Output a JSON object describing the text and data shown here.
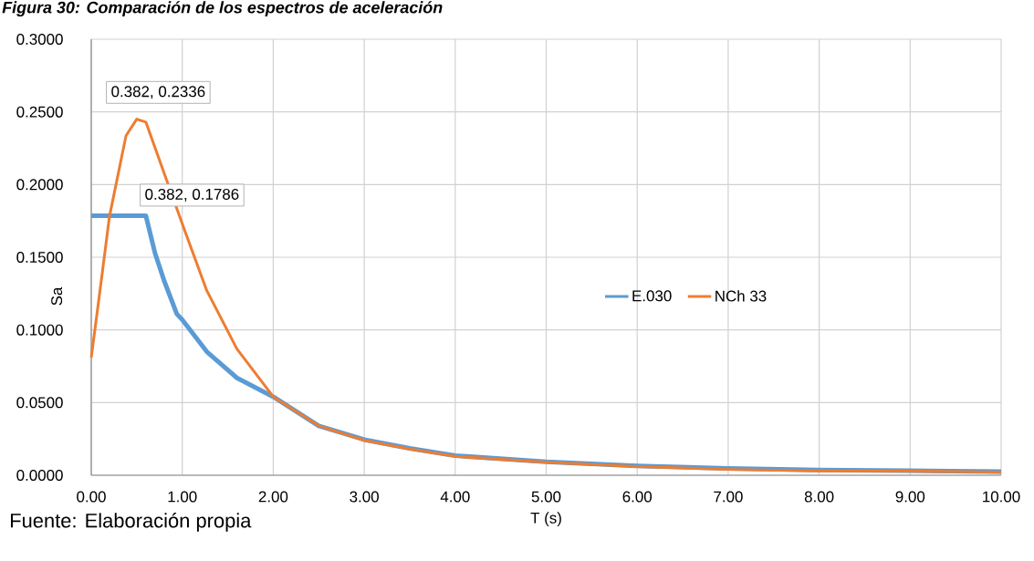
{
  "chart_data": {
    "type": "line",
    "title": "Figura 30: Comparación de los espectros de aceleración",
    "xlabel": "T (s)",
    "ylabel": "Sa",
    "xlim": [
      0,
      10
    ],
    "ylim": [
      0,
      0.3
    ],
    "xticks": [
      {
        "value": 0,
        "label": "0.00"
      },
      {
        "value": 1,
        "label": "1.00"
      },
      {
        "value": 2,
        "label": "2.00"
      },
      {
        "value": 3,
        "label": "3.00"
      },
      {
        "value": 4,
        "label": "4.00"
      },
      {
        "value": 5,
        "label": "5.00"
      },
      {
        "value": 6,
        "label": "6.00"
      },
      {
        "value": 7,
        "label": "7.00"
      },
      {
        "value": 8,
        "label": "8.00"
      },
      {
        "value": 9,
        "label": "9.00"
      },
      {
        "value": 10,
        "label": "10.00"
      }
    ],
    "yticks": [
      {
        "value": 0,
        "label": "0.0000"
      },
      {
        "value": 0.05,
        "label": "0.0500"
      },
      {
        "value": 0.1,
        "label": "0.1000"
      },
      {
        "value": 0.15,
        "label": "0.1500"
      },
      {
        "value": 0.2,
        "label": "0.2000"
      },
      {
        "value": 0.25,
        "label": "0.2500"
      },
      {
        "value": 0.3,
        "label": "0.3000"
      }
    ],
    "grid": true,
    "legend": "center",
    "marker": "none",
    "line_style": "solid",
    "series": [
      {
        "name": "E.030",
        "color": "#5b9bd5",
        "x": [
          0,
          0.382,
          0.6,
          0.7,
          0.8,
          0.94,
          1.0,
          1.27,
          1.6,
          2.0,
          2.5,
          3.0,
          3.5,
          4.0,
          5.0,
          6.0,
          7.0,
          8.0,
          9.0,
          10.0
        ],
        "values": [
          0.1786,
          0.1786,
          0.1786,
          0.153,
          0.134,
          0.111,
          0.107,
          0.085,
          0.067,
          0.054,
          0.034,
          0.0245,
          0.0185,
          0.0135,
          0.0092,
          0.0064,
          0.0047,
          0.0036,
          0.0031,
          0.0025
        ]
      },
      {
        "name": "NCh  33",
        "color": "#ed7d31",
        "x": [
          0,
          0.1,
          0.2,
          0.382,
          0.5,
          0.6,
          0.84,
          1.0,
          1.27,
          1.6,
          2.0,
          2.5,
          3.0,
          3.5,
          4.0,
          5.0,
          6.0,
          7.0,
          8.0,
          9.0,
          10.0
        ],
        "values": [
          0.081,
          0.129,
          0.178,
          0.2336,
          0.245,
          0.243,
          0.201,
          0.173,
          0.127,
          0.087,
          0.054,
          0.034,
          0.024,
          0.018,
          0.013,
          0.009,
          0.006,
          0.004,
          0.003,
          0.003,
          0.002
        ]
      }
    ],
    "annotations": [
      {
        "text": "0.382, 0.2336",
        "x": 0.382,
        "y": 0.2336
      },
      {
        "text": "0.382, 0.1786",
        "x": 0.382,
        "y": 0.1786
      },
      "Fuente: Elaboración propia"
    ]
  }
}
